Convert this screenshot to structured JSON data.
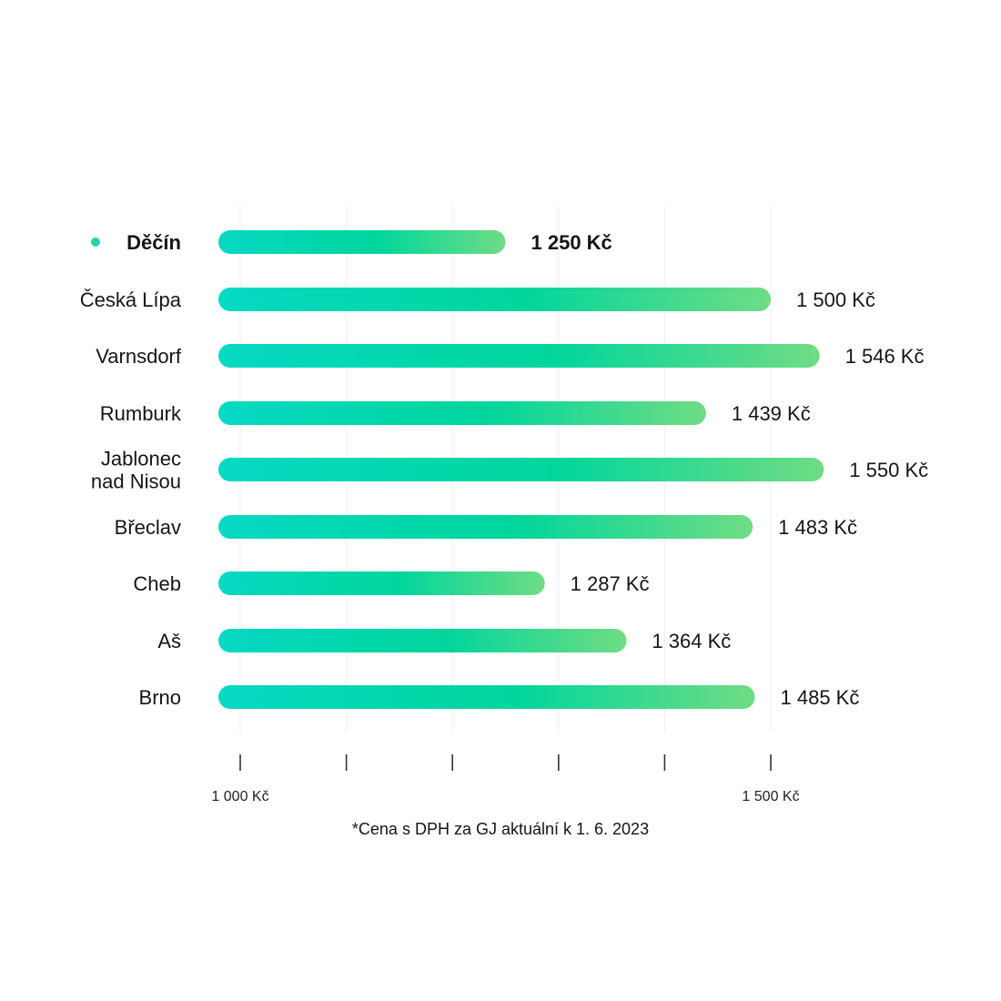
{
  "chart_data": {
    "type": "bar",
    "orientation": "horizontal",
    "categories": [
      "Děčín",
      "Česká Lípa",
      "Varnsdorf",
      "Rumburk",
      "Jablonec nad Nisou",
      "Břeclav",
      "Cheb",
      "Aš",
      "Brno"
    ],
    "category_lines": [
      [
        "Děčín"
      ],
      [
        "Česká Lípa"
      ],
      [
        "Varnsdorf"
      ],
      [
        "Rumburk"
      ],
      [
        "Jablonec",
        "nad Nisou"
      ],
      [
        "Břeclav"
      ],
      [
        "Cheb"
      ],
      [
        "Aš"
      ],
      [
        "Brno"
      ]
    ],
    "values": [
      1250,
      1500,
      1546,
      1439,
      1550,
      1483,
      1287,
      1364,
      1485
    ],
    "value_labels": [
      "1 250 Kč",
      "1 500 Kč",
      "1 546 Kč",
      "1 439 Kč",
      "1 550 Kč",
      "1 483 Kč",
      "1 287 Kč",
      "1 364 Kč",
      "1 485 Kč"
    ],
    "highlight": "Děčín",
    "x_ticks": [
      1000,
      1100,
      1200,
      1300,
      1400,
      1500
    ],
    "x_tick_labels": [
      "1 000 Kč",
      "",
      "",
      "",
      "",
      "1 500 Kč"
    ],
    "xlim": [
      1000,
      1500
    ],
    "unit": "Kč",
    "grid": true,
    "footnote": "*Cena s DPH za GJ aktuální k 1. 6. 2023"
  },
  "colors": {
    "bar_start": "#06d9c4",
    "bar_mid": "#00d69c",
    "bar_end": "#6fdc84",
    "highlight_dot": "#1fd6ae",
    "grid": "#eeeeee",
    "tick": "#333333",
    "text": "#151515"
  }
}
